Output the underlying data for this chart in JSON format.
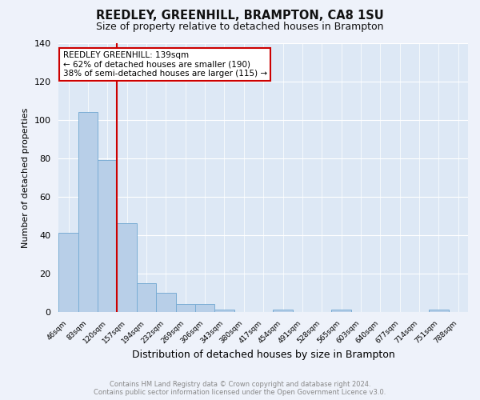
{
  "title": "REEDLEY, GREENHILL, BRAMPTON, CA8 1SU",
  "subtitle": "Size of property relative to detached houses in Brampton",
  "xlabel": "Distribution of detached houses by size in Brampton",
  "ylabel": "Number of detached properties",
  "bar_color": "#b8cfe8",
  "bar_edge_color": "#7aadd4",
  "background_color": "#dde8f5",
  "grid_color": "#ffffff",
  "bin_labels": [
    "46sqm",
    "83sqm",
    "120sqm",
    "157sqm",
    "194sqm",
    "232sqm",
    "269sqm",
    "306sqm",
    "343sqm",
    "380sqm",
    "417sqm",
    "454sqm",
    "491sqm",
    "528sqm",
    "565sqm",
    "603sqm",
    "640sqm",
    "677sqm",
    "714sqm",
    "751sqm",
    "788sqm"
  ],
  "bar_heights": [
    41,
    104,
    79,
    46,
    15,
    10,
    4,
    4,
    1,
    0,
    0,
    1,
    0,
    0,
    1,
    0,
    0,
    0,
    0,
    1,
    0
  ],
  "annotation_title": "REEDLEY GREENHILL: 139sqm",
  "annotation_line1": "← 62% of detached houses are smaller (190)",
  "annotation_line2": "38% of semi-detached houses are larger (115) →",
  "ylim": [
    0,
    140
  ],
  "yticks": [
    0,
    20,
    40,
    60,
    80,
    100,
    120,
    140
  ],
  "footer_line1": "Contains HM Land Registry data © Crown copyright and database right 2024.",
  "footer_line2": "Contains public sector information licensed under the Open Government Licence v3.0.",
  "annotation_box_color": "#ffffff",
  "annotation_border_color": "#cc0000",
  "red_line_color": "#cc0000",
  "fig_bg_color": "#eef2fa"
}
